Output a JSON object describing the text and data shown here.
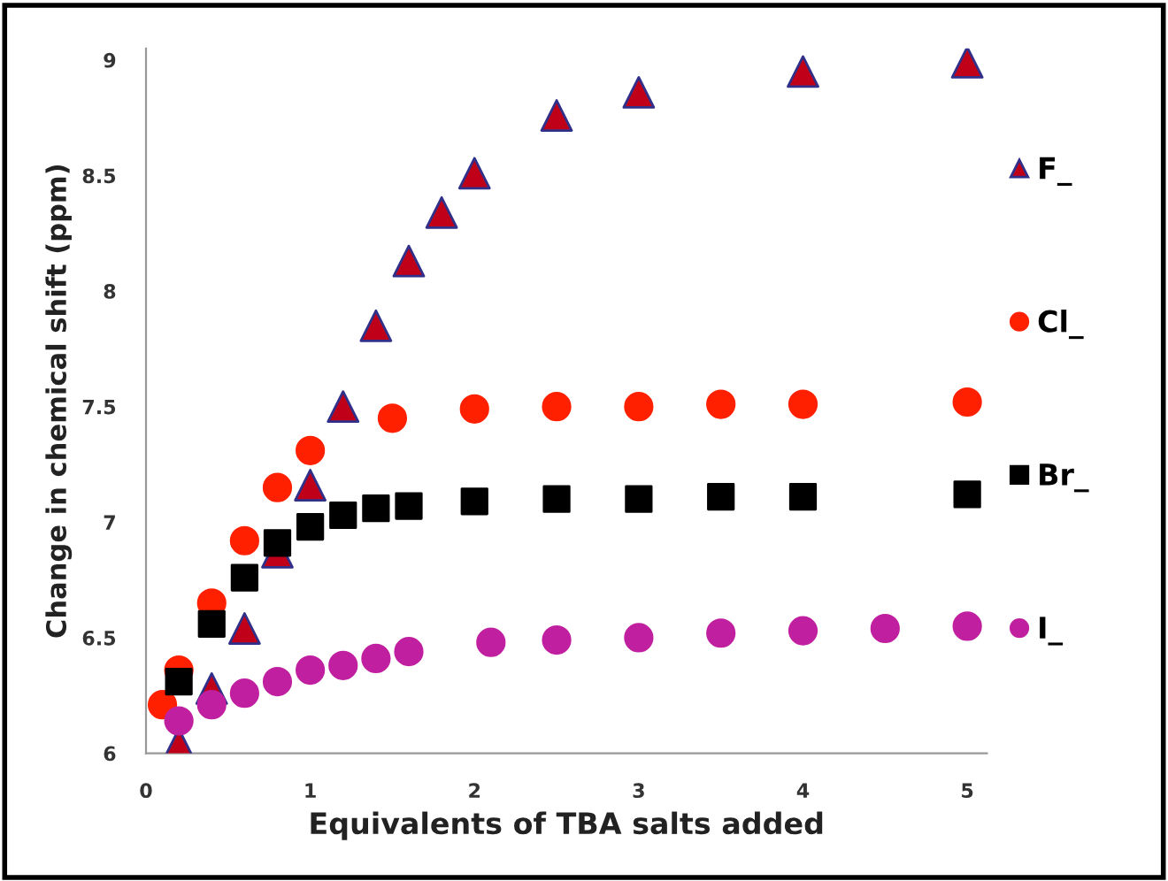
{
  "chart_data": {
    "type": "scatter",
    "xlabel": "Equivalents of TBA salts added",
    "ylabel": "Change in chemical shift (ppm)",
    "xlim": [
      0,
      5.12
    ],
    "ylim": [
      6,
      9.05
    ],
    "xticks": [
      0,
      1,
      2,
      3,
      4,
      5
    ],
    "yticks": [
      6,
      6.5,
      7,
      7.5,
      8,
      8.5,
      9
    ],
    "grid": false,
    "legend": "right",
    "series": [
      {
        "name": "F_",
        "color": "#c00018",
        "marker": "triangle",
        "x": [
          0.2,
          0.4,
          0.6,
          0.8,
          1.0,
          1.2,
          1.4,
          1.6,
          1.8,
          2.0,
          2.5,
          3,
          4,
          5
        ],
        "values": [
          6.04,
          6.28,
          6.54,
          6.87,
          7.16,
          7.5,
          7.85,
          8.13,
          8.34,
          8.51,
          8.76,
          8.86,
          8.95,
          8.99
        ]
      },
      {
        "name": "Cl_",
        "color": "#ff2000",
        "marker": "circle",
        "x": [
          0.1,
          0.2,
          0.4,
          0.6,
          0.8,
          1.0,
          1.5,
          2.0,
          2.5,
          3,
          3.5,
          4,
          5
        ],
        "values": [
          6.21,
          6.36,
          6.65,
          6.92,
          7.15,
          7.31,
          7.45,
          7.49,
          7.5,
          7.5,
          7.51,
          7.51,
          7.52
        ]
      },
      {
        "name": "Br_",
        "color": "#000000",
        "marker": "square",
        "x": [
          0.2,
          0.4,
          0.6,
          0.8,
          1.0,
          1.2,
          1.4,
          1.6,
          2.0,
          2.5,
          3,
          3.5,
          4,
          5
        ],
        "values": [
          6.31,
          6.56,
          6.76,
          6.91,
          6.98,
          7.03,
          7.06,
          7.07,
          7.09,
          7.1,
          7.1,
          7.11,
          7.11,
          7.12
        ]
      },
      {
        "name": "I_",
        "color": "#c020a0",
        "marker": "circle",
        "x": [
          0.2,
          0.4,
          0.6,
          0.8,
          1.0,
          1.2,
          1.4,
          1.6,
          2.1,
          2.5,
          3,
          3.5,
          4,
          4.5,
          5
        ],
        "values": [
          6.14,
          6.21,
          6.26,
          6.31,
          6.36,
          6.38,
          6.41,
          6.44,
          6.48,
          6.49,
          6.5,
          6.52,
          6.53,
          6.54,
          6.55
        ]
      }
    ]
  }
}
